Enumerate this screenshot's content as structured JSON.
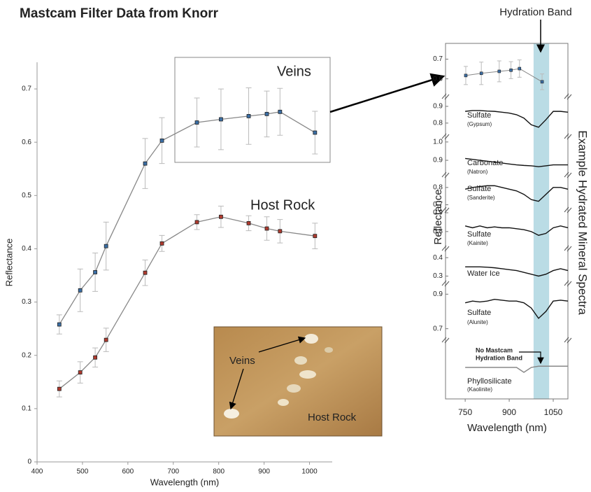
{
  "chart_data": [
    {
      "type": "line",
      "title": "Mastcam Filter Data from Knorr",
      "xlabel": "Wavelength (nm)",
      "ylabel": "Reflectance",
      "x": [
        449,
        495,
        528,
        552,
        638,
        675,
        752,
        805,
        866,
        906,
        935,
        1012
      ],
      "xlim": [
        400,
        1050
      ],
      "xticks": [
        400,
        500,
        600,
        700,
        800,
        900,
        1000
      ],
      "ylim": [
        0,
        0.75
      ],
      "yticks": [
        0,
        0.1,
        0.2,
        0.3,
        0.4,
        0.5,
        0.6,
        0.7
      ],
      "series": [
        {
          "name": "Veins",
          "color": "#3a6ea5",
          "values": [
            0.258,
            0.322,
            0.356,
            0.405,
            0.56,
            0.603,
            0.637,
            0.643,
            0.649,
            0.653,
            0.657,
            0.618
          ],
          "errors": [
            0.018,
            0.04,
            0.036,
            0.045,
            0.047,
            0.043,
            0.046,
            0.057,
            0.053,
            0.043,
            0.044,
            0.04
          ]
        },
        {
          "name": "Host Rock",
          "color": "#b03a2e",
          "values": [
            0.137,
            0.168,
            0.196,
            0.229,
            0.355,
            0.41,
            0.45,
            0.46,
            0.448,
            0.438,
            0.433,
            0.424
          ],
          "errors": [
            0.015,
            0.02,
            0.018,
            0.022,
            0.024,
            0.015,
            0.014,
            0.02,
            0.014,
            0.022,
            0.022,
            0.024
          ]
        }
      ],
      "photo_labels": [
        "Veins",
        "Host Rock"
      ]
    },
    {
      "type": "spectra",
      "xlabel": "Wavelength (nm)",
      "ylabel": "Reflectance",
      "side_label": "Example Hydrated Mineral Spectra",
      "band_label": "Hydration Band",
      "band": [
        983,
        1036
      ],
      "xlim": [
        683,
        1100
      ],
      "xticks": [
        750,
        900,
        1050
      ],
      "inset": {
        "x": [
          752,
          805,
          866,
          906,
          935,
          1012
        ],
        "values": [
          0.617,
          0.628,
          0.638,
          0.644,
          0.652,
          0.585
        ],
        "errors": [
          0.046,
          0.057,
          0.053,
          0.043,
          0.044,
          0.04
        ],
        "ylim": [
          0.51,
          0.78
        ],
        "yticks": [
          0.6,
          0.7
        ],
        "color": "#3a6ea5"
      },
      "x_spectra": [
        750,
        775,
        800,
        825,
        850,
        875,
        900,
        925,
        950,
        975,
        1000,
        1025,
        1050,
        1075,
        1100
      ],
      "panels": [
        {
          "name": "Sulfate",
          "detail": "(Gypsum)",
          "ylim": [
            0.72,
            0.95
          ],
          "yticks": [
            0.9,
            0.8
          ],
          "values": [
            0.87,
            0.875,
            0.875,
            0.872,
            0.87,
            0.865,
            0.86,
            0.85,
            0.83,
            0.79,
            0.775,
            0.82,
            0.87,
            0.87,
            0.865
          ]
        },
        {
          "name": "Carbonate",
          "detail": "(Natron)",
          "ylim": [
            0.82,
            1.03
          ],
          "yticks": [
            {
              "value": 1.0,
              "label": "1.0"
            },
            0.9
          ],
          "values": [
            0.91,
            0.905,
            0.9,
            0.895,
            0.89,
            0.885,
            0.88,
            0.875,
            0.872,
            0.87,
            0.865,
            0.87,
            0.875,
            0.875,
            0.875
          ]
        },
        {
          "name": "Sulfate",
          "detail": "(Sanderite)",
          "ylim": [
            0.67,
            0.86
          ],
          "yticks": [
            0.8,
            0.7
          ],
          "values": [
            0.79,
            0.8,
            0.805,
            0.81,
            0.81,
            0.8,
            0.79,
            0.78,
            0.76,
            0.73,
            0.72,
            0.76,
            0.8,
            0.8,
            0.79
          ]
        },
        {
          "name": "Sulfate",
          "detail": "(Kainite)",
          "ylim": [
            0.71,
            0.915
          ],
          "yticks": [
            0.9,
            0.8
          ],
          "values": [
            0.83,
            0.82,
            0.83,
            0.82,
            0.825,
            0.82,
            0.82,
            0.815,
            0.81,
            0.8,
            0.78,
            0.79,
            0.82,
            0.83,
            0.82
          ]
        },
        {
          "name": "Water Ice",
          "ylim": [
            0.26,
            0.45
          ],
          "yticks": [
            0.4,
            0.3
          ],
          "values": [
            0.35,
            0.35,
            0.35,
            0.348,
            0.345,
            0.34,
            0.335,
            0.33,
            0.32,
            0.31,
            0.3,
            0.31,
            0.33,
            0.34,
            0.33
          ]
        },
        {
          "name": "Sulfate",
          "detail": "(Alunite)",
          "ylim": [
            0.65,
            0.95
          ],
          "yticks": [
            0.9,
            0.7
          ],
          "values": [
            0.85,
            0.86,
            0.855,
            0.86,
            0.87,
            0.865,
            0.86,
            0.86,
            0.85,
            0.82,
            0.76,
            0.8,
            0.86,
            0.865,
            0.86
          ]
        },
        {
          "name": "Phyllosilicate",
          "detail": "(Kaolinite)",
          "color": "#888888",
          "ylim": [
            0.4,
            0.6
          ],
          "values": [
            0.5,
            0.5,
            0.5,
            0.5,
            0.5,
            0.5,
            0.5,
            0.5,
            0.48,
            0.5,
            0.505,
            0.505,
            0.505,
            0.505,
            0.505
          ],
          "note_lines": [
            "No Mastcam",
            "Hydration Band"
          ]
        }
      ]
    }
  ]
}
